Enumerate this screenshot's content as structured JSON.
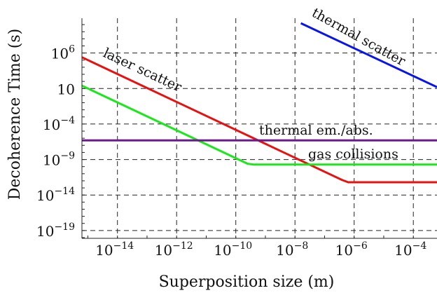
{
  "chart_data": {
    "type": "line",
    "xlabel": "Superposition size (m)",
    "ylabel": "Decoherence Time (s)",
    "xscale": "log",
    "yscale": "log",
    "xlim_exp": [
      -15.2,
      -3.2
    ],
    "ylim_exp": [
      -20.1,
      10.9
    ],
    "x_ticks": [
      {
        "base": "10",
        "exp": "−14",
        "value_exp": -14
      },
      {
        "base": "10",
        "exp": "−12",
        "value_exp": -12
      },
      {
        "base": "10",
        "exp": "−10",
        "value_exp": -10
      },
      {
        "base": "10",
        "exp": "−8",
        "value_exp": -8
      },
      {
        "base": "10",
        "exp": "−6",
        "value_exp": -6
      },
      {
        "base": "10",
        "exp": "−4",
        "value_exp": -4
      }
    ],
    "y_ticks": [
      {
        "base": "10",
        "exp": "6",
        "value_exp": 6
      },
      {
        "base": "10",
        "exp": "",
        "value_exp": 1
      },
      {
        "base": "10",
        "exp": "−4",
        "value_exp": -4
      },
      {
        "base": "10",
        "exp": "−9",
        "value_exp": -9
      },
      {
        "base": "10",
        "exp": "−14",
        "value_exp": -14
      },
      {
        "base": "10",
        "exp": "−19",
        "value_exp": -19
      }
    ],
    "grid": true,
    "series": [
      {
        "name": "thermal scatter",
        "color": "#0a14e6",
        "points_exp": [
          [
            -7.8,
            10.2
          ],
          [
            -3.2,
            1.2
          ]
        ]
      },
      {
        "name": "laser scatter",
        "color": "#e61212",
        "points_exp": [
          [
            -15.2,
            5.4
          ],
          [
            -6.4,
            -11.9
          ],
          [
            -6.2,
            -12.2
          ],
          [
            -3.2,
            -12.2
          ]
        ]
      },
      {
        "name": "gas collisions",
        "color": "#1ee61e",
        "points_exp": [
          [
            -15.2,
            1.4
          ],
          [
            -9.6,
            -9.6
          ],
          [
            -9.4,
            -9.7
          ],
          [
            -3.2,
            -9.7
          ]
        ]
      },
      {
        "name": "thermal em./abs.",
        "color": "#6a1a8a",
        "points_exp": [
          [
            -15.2,
            -6.3
          ],
          [
            -3.2,
            -6.3
          ]
        ]
      }
    ]
  }
}
